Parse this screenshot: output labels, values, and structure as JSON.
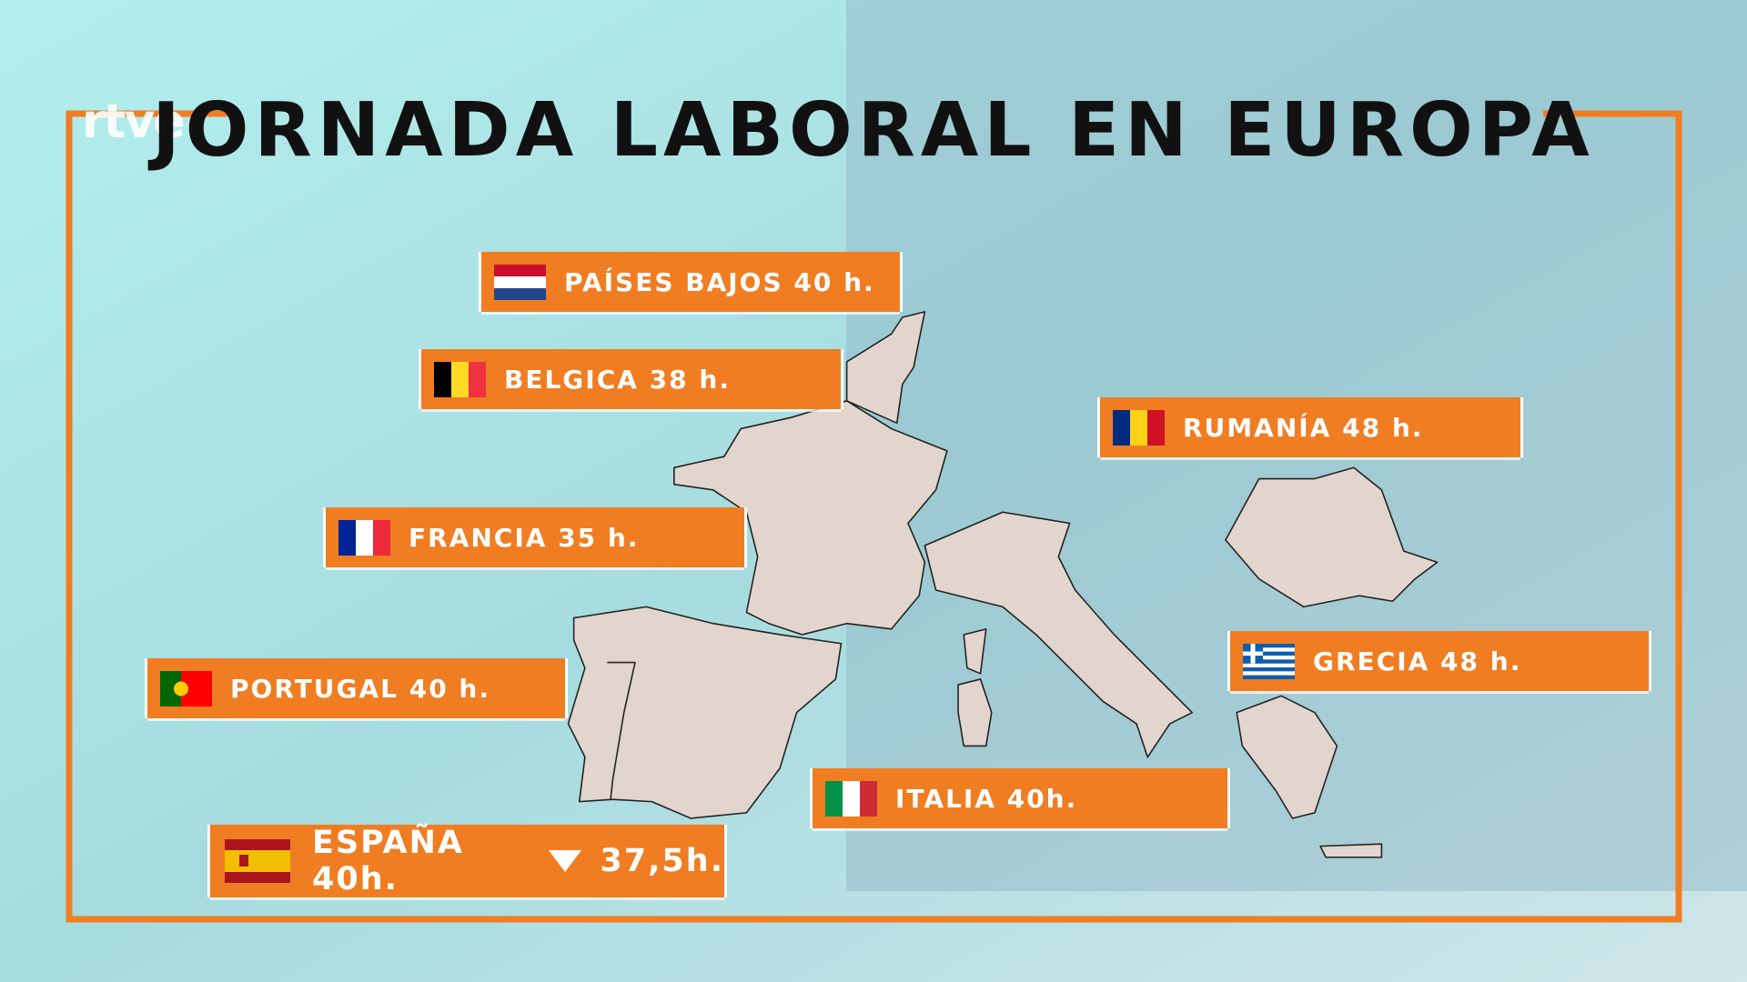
{
  "logo": "rtve",
  "title": "JORNADA LABORAL EN EUROPA",
  "labels": [
    {
      "text": "PAÍSES BAJOS 40 h."
    },
    {
      "text": "BELGICA 38 h."
    },
    {
      "text": "RUMANÍA 48 h."
    },
    {
      "text": "FRANCIA 35 h."
    },
    {
      "text": "PORTUGAL 40 h."
    },
    {
      "text": "GRECIA 48 h."
    },
    {
      "text": "ITALIA 40h."
    },
    {
      "text": "ESPAÑA 40h.",
      "new": "37,5h."
    }
  ]
}
